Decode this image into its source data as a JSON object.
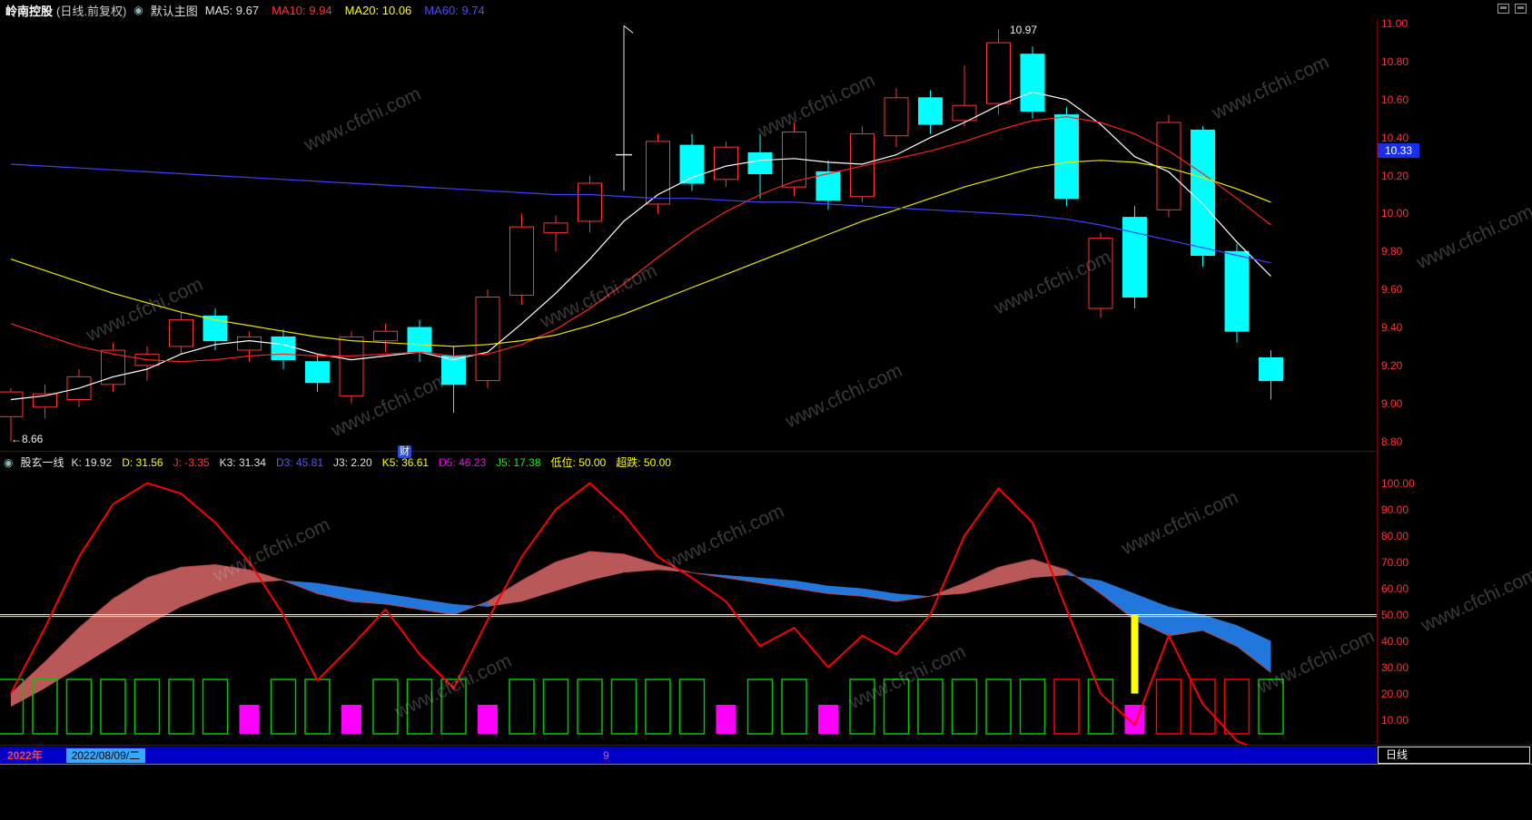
{
  "header": {
    "title": "岭南控股",
    "subtitle": "(日线.前复权)",
    "overlay": "默认主图",
    "ma": [
      {
        "label": "MA5:",
        "value": "9.67",
        "color": "#e0e0e0"
      },
      {
        "label": "MA10:",
        "value": "9.94",
        "color": "#ff3232"
      },
      {
        "label": "MA20:",
        "value": "10.06",
        "color": "#ffff00"
      },
      {
        "label": "MA60:",
        "value": "9.74",
        "color": "#4d4dff"
      }
    ]
  },
  "main_chart": {
    "y_axis": [
      "11.00",
      "10.80",
      "10.60",
      "10.40",
      "10.20",
      "10.00",
      "9.80",
      "9.60",
      "9.40",
      "9.20",
      "9.00",
      "8.80"
    ],
    "price_badge": "10.33",
    "high_label": "10.97",
    "low_label": "←8.66",
    "event_marker": "财",
    "watermark": "www.cfchi.com"
  },
  "indicator": {
    "name": "股玄一线",
    "values": [
      {
        "label": "K:",
        "value": "19.92",
        "color": "#e0e0e0"
      },
      {
        "label": "D:",
        "value": "31.56",
        "color": "#ffff00"
      },
      {
        "label": "J:",
        "value": "-3.35",
        "color": "#ff3535"
      },
      {
        "label": "K3:",
        "value": "31.34",
        "color": "#e0e0e0"
      },
      {
        "label": "D3:",
        "value": "45.81",
        "color": "#5555ff"
      },
      {
        "label": "J3:",
        "value": "2.20",
        "color": "#e0e0e0"
      },
      {
        "label": "K5:",
        "value": "36.61",
        "color": "#ffff00"
      },
      {
        "label": "D5:",
        "value": "46.23",
        "color": "#ff00ff"
      },
      {
        "label": "J5:",
        "value": "17.38",
        "color": "#00ff00"
      },
      {
        "label": "低位:",
        "value": "50.00",
        "color": "#ffff00"
      },
      {
        "label": "超跌:",
        "value": "50.00",
        "color": "#ffff00"
      }
    ],
    "y_axis": [
      "100.00",
      "90.00",
      "80.00",
      "70.00",
      "60.00",
      "50.00",
      "40.00",
      "30.00",
      "20.00",
      "10.00"
    ]
  },
  "footer": {
    "year": "2022年",
    "date": "2022/08/09/二",
    "month": "9",
    "period": "日线"
  },
  "chart_data": [
    {
      "type": "candlestick",
      "title": "岭南控股 日线 前复权",
      "price_range": [
        8.75,
        11.02
      ],
      "up_color": "#ff3232",
      "down_color": "#00ffff",
      "candles": [
        [
          8.93,
          9.08,
          8.8,
          9.06
        ],
        [
          8.98,
          9.1,
          8.92,
          9.05
        ],
        [
          9.02,
          9.18,
          8.98,
          9.14
        ],
        [
          9.1,
          9.32,
          9.06,
          9.28
        ],
        [
          9.2,
          9.3,
          9.12,
          9.26
        ],
        [
          9.3,
          9.48,
          9.26,
          9.44
        ],
        [
          9.46,
          9.5,
          9.28,
          9.33
        ],
        [
          9.28,
          9.38,
          9.22,
          9.35
        ],
        [
          9.35,
          9.39,
          9.18,
          9.23
        ],
        [
          9.22,
          9.26,
          9.06,
          9.11
        ],
        [
          9.04,
          9.38,
          9.0,
          9.35
        ],
        [
          9.33,
          9.42,
          9.27,
          9.38
        ],
        [
          9.4,
          9.44,
          9.22,
          9.27
        ],
        [
          9.25,
          9.3,
          8.95,
          9.1
        ],
        [
          9.12,
          9.6,
          9.08,
          9.56
        ],
        [
          9.57,
          10.0,
          9.52,
          9.93
        ],
        [
          9.9,
          9.99,
          9.8,
          9.95
        ],
        [
          9.96,
          10.2,
          9.9,
          10.16
        ],
        [
          10.31,
          10.99,
          10.12,
          10.31
        ],
        [
          10.05,
          10.42,
          10.0,
          10.38
        ],
        [
          10.36,
          10.42,
          10.12,
          10.16
        ],
        [
          10.18,
          10.38,
          10.14,
          10.35
        ],
        [
          10.32,
          10.42,
          10.08,
          10.21
        ],
        [
          10.14,
          10.48,
          10.09,
          10.43
        ],
        [
          10.22,
          10.28,
          10.02,
          10.07
        ],
        [
          10.09,
          10.46,
          10.06,
          10.42
        ],
        [
          10.41,
          10.66,
          10.35,
          10.61
        ],
        [
          10.61,
          10.65,
          10.42,
          10.47
        ],
        [
          10.49,
          10.78,
          10.46,
          10.57
        ],
        [
          10.58,
          10.97,
          10.52,
          10.9
        ],
        [
          10.84,
          10.88,
          10.5,
          10.54
        ],
        [
          10.52,
          10.56,
          10.04,
          10.08
        ],
        [
          9.5,
          9.9,
          9.45,
          9.87
        ],
        [
          9.98,
          10.04,
          9.5,
          9.56
        ],
        [
          10.02,
          10.52,
          9.98,
          10.48
        ],
        [
          10.44,
          10.46,
          9.72,
          9.78
        ],
        [
          9.8,
          9.84,
          9.32,
          9.38
        ],
        [
          9.24,
          9.28,
          9.02,
          9.12
        ]
      ],
      "ma_lines": [
        {
          "name": "MA5",
          "color": "#ffffff",
          "values": [
            9.02,
            9.04,
            9.08,
            9.14,
            9.18,
            9.26,
            9.31,
            9.33,
            9.31,
            9.26,
            9.23,
            9.25,
            9.27,
            9.23,
            9.27,
            9.42,
            9.58,
            9.76,
            9.96,
            10.1,
            10.19,
            10.25,
            10.28,
            10.29,
            10.27,
            10.26,
            10.31,
            10.4,
            10.48,
            10.57,
            10.64,
            10.6,
            10.47,
            10.3,
            10.22,
            10.05,
            9.85,
            9.67
          ]
        },
        {
          "name": "MA10",
          "color": "#ff2020",
          "values": [
            9.42,
            9.36,
            9.3,
            9.26,
            9.23,
            9.22,
            9.23,
            9.25,
            9.26,
            9.25,
            9.25,
            9.26,
            9.27,
            9.25,
            9.26,
            9.31,
            9.39,
            9.5,
            9.63,
            9.77,
            9.9,
            10.01,
            10.1,
            10.17,
            10.21,
            10.25,
            10.29,
            10.33,
            10.38,
            10.44,
            10.49,
            10.51,
            10.48,
            10.42,
            10.33,
            10.21,
            10.08,
            9.94
          ]
        },
        {
          "name": "MA20",
          "color": "#e8e800",
          "values": [
            9.76,
            9.7,
            9.64,
            9.58,
            9.53,
            9.48,
            9.44,
            9.41,
            9.38,
            9.35,
            9.33,
            9.32,
            9.31,
            9.3,
            9.31,
            9.33,
            9.36,
            9.41,
            9.47,
            9.54,
            9.61,
            9.68,
            9.75,
            9.82,
            9.89,
            9.96,
            10.02,
            10.08,
            10.14,
            10.19,
            10.24,
            10.27,
            10.28,
            10.27,
            10.24,
            10.19,
            10.13,
            10.06
          ]
        },
        {
          "name": "MA60",
          "color": "#4040ff",
          "values": [
            10.26,
            10.25,
            10.24,
            10.23,
            10.22,
            10.21,
            10.2,
            10.19,
            10.18,
            10.17,
            10.16,
            10.15,
            10.14,
            10.13,
            10.12,
            10.11,
            10.1,
            10.1,
            10.09,
            10.08,
            10.08,
            10.07,
            10.06,
            10.06,
            10.05,
            10.04,
            10.03,
            10.02,
            10.01,
            10.0,
            9.99,
            9.97,
            9.94,
            9.9,
            9.86,
            9.82,
            9.78,
            9.74
          ]
        }
      ]
    },
    {
      "type": "line",
      "name": "股玄一线",
      "range": [
        0,
        104
      ],
      "j_line": {
        "color": "#ff0000",
        "values": [
          20,
          45,
          72,
          92,
          100,
          96,
          85,
          70,
          50,
          25,
          38,
          52,
          35,
          22,
          48,
          72,
          90,
          100,
          88,
          72,
          64,
          55,
          38,
          45,
          30,
          42,
          35,
          50,
          80,
          98,
          85,
          52,
          20,
          8,
          42,
          16,
          2,
          -3.35
        ]
      },
      "cloud": {
        "up_color": "#b85858",
        "down_color": "#2277dd",
        "fast": [
          20,
          32,
          45,
          56,
          64,
          68,
          69,
          67,
          63,
          58,
          55,
          54,
          52,
          50,
          55,
          63,
          70,
          74,
          73,
          69,
          66,
          64,
          62,
          60,
          58,
          57,
          55,
          57,
          62,
          68,
          71,
          67,
          58,
          48,
          42,
          44,
          38,
          28
        ],
        "slow": [
          15,
          22,
          30,
          38,
          46,
          53,
          58,
          62,
          63,
          62,
          60,
          58,
          56,
          54,
          53,
          55,
          59,
          63,
          66,
          67,
          66,
          65,
          64,
          63,
          61,
          60,
          58,
          57,
          58,
          61,
          64,
          65,
          63,
          58,
          53,
          50,
          46,
          40
        ]
      },
      "guide_lines": [
        {
          "value": 50,
          "color": "#ffffff"
        },
        {
          "value": 50,
          "color": "#ffff00"
        }
      ],
      "yellow_bar": {
        "index": 33,
        "from": 50,
        "to": 20,
        "color": "#ffff00"
      },
      "boxes": [
        "g",
        "g",
        "g",
        "g",
        "g",
        "g",
        "g",
        "m",
        "g",
        "g",
        "m",
        "g",
        "g",
        "g",
        "m",
        "g",
        "g",
        "g",
        "g",
        "g",
        "g",
        "m",
        "g",
        "g",
        "m",
        "g",
        "g",
        "g",
        "g",
        "g",
        "g",
        "r",
        "g",
        "m",
        "r",
        "r",
        "r",
        "g"
      ],
      "box_colors": {
        "g": "#00c800",
        "m": "#ff00ff",
        "r": "#ff0000"
      }
    }
  ]
}
